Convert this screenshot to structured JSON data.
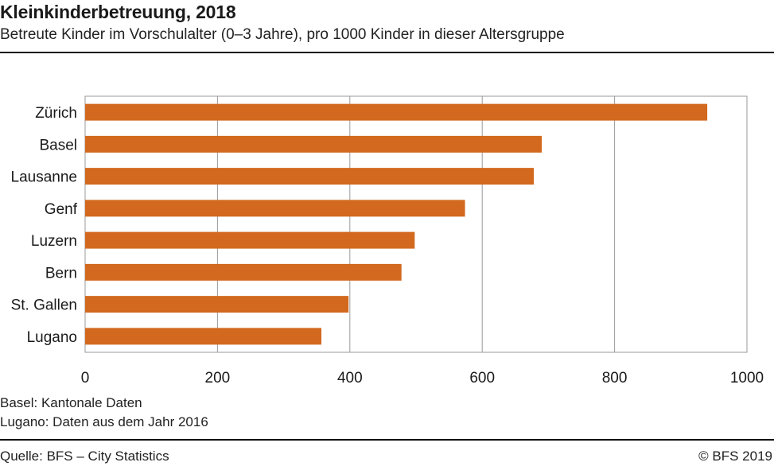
{
  "header": {
    "title": "Kleinkinderbetreuung, 2018",
    "subtitle": "Betreute Kinder im Vorschulalter (0–3 Jahre), pro 1000 Kinder in dieser Altersgruppe"
  },
  "chart_data": {
    "type": "bar",
    "orientation": "horizontal",
    "title": "Kleinkinderbetreuung, 2018",
    "subtitle": "Betreute Kinder im Vorschulalter (0–3 Jahre), pro 1000 Kinder in dieser Altersgruppe",
    "categories": [
      "Zürich",
      "Basel",
      "Lausanne",
      "Genf",
      "Luzern",
      "Bern",
      "St. Gallen",
      "Lugano"
    ],
    "values": [
      940,
      690,
      678,
      574,
      498,
      478,
      398,
      357
    ],
    "xlim": [
      0,
      1000
    ],
    "xticks": [
      0,
      200,
      400,
      600,
      800,
      1000
    ],
    "xtick_labels": [
      "0",
      "200",
      "400",
      "600",
      "800",
      "1000"
    ],
    "xlabel": "",
    "ylabel": "",
    "grid": "vertical",
    "legend": "none",
    "bar_color": "#d2691e"
  },
  "notes": [
    "Basel: Kantonale Daten",
    "Lugano: Daten aus dem Jahr 2016"
  ],
  "footer": {
    "source": "Quelle: BFS – City Statistics",
    "copyright": "© BFS 2019"
  },
  "colors": {
    "bar": "#d2691e",
    "grid": "#9a9a9a",
    "frame": "#9a9a9a",
    "text": "#1a1a1a"
  }
}
